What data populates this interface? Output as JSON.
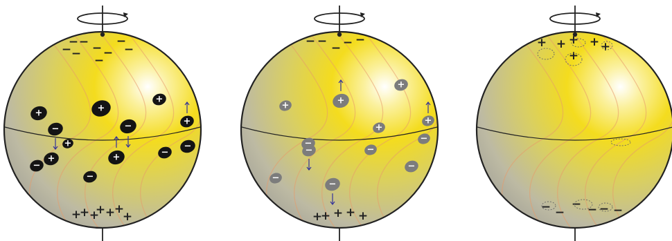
{
  "symbols": {
    "positive": "+",
    "negative": "−"
  },
  "colors": {
    "sphere_highlight": "#ffffff",
    "sphere_yellow": "#f4dc1e",
    "sphere_shadow": "#b8b6a6",
    "outline": "#222222",
    "field_lines": "#e89a6a",
    "flux_arrow": "#33339a",
    "spot_dark": "#141414",
    "spot_gray": "#7c7c7c"
  },
  "panels": [
    {
      "name": "panel-1",
      "pole_north": [
        "−",
        "−",
        "−",
        "−",
        "−",
        "−",
        "−",
        "−",
        "−"
      ],
      "pole_south": [
        "+",
        "+",
        "+",
        "+",
        "+",
        "+",
        "+"
      ],
      "spot_style": "dark",
      "spots": [
        "+",
        "−",
        "+",
        "+",
        "−",
        "+",
        "−",
        "+",
        "−",
        "−",
        "+",
        "−",
        "+"
      ]
    },
    {
      "name": "panel-2",
      "pole_north": [
        "−",
        "−",
        "−",
        "−",
        "−"
      ],
      "pole_south": [
        "+",
        "+",
        "+",
        "+",
        "+"
      ],
      "spot_style": "gray",
      "spots": [
        "+",
        "+",
        "+",
        "−",
        "−",
        "+",
        "−",
        "+",
        "−",
        "−",
        "−",
        "−"
      ]
    },
    {
      "name": "panel-3",
      "pole_north": [
        "+",
        "+",
        "+",
        "+",
        "+",
        "+"
      ],
      "pole_south": [
        "−",
        "−",
        "−",
        "−",
        "−",
        "−"
      ],
      "spot_style": "outline",
      "spots": []
    }
  ]
}
